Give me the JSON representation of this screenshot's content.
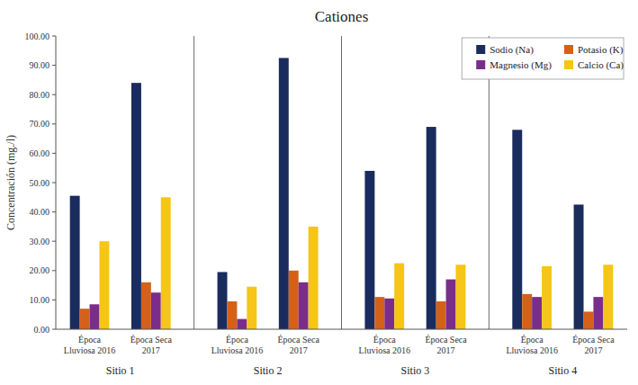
{
  "chart_data": {
    "type": "bar",
    "title": "Cationes",
    "y_label": "Concentración (mg./l)",
    "categories": [
      "Época\nLluviosa 2016",
      "Época Seca\n2017",
      "Época\nLluviosa 2016",
      "Época Seca\n2017",
      "Época\nLluviosa 2016",
      "Época Seca\n2017",
      "Época\nLluviosa 2016",
      "Época Seca\n2017"
    ],
    "groups": [
      "Sitio 1",
      "Sitio 2",
      "Sitio 3",
      "Sitio 4"
    ],
    "series": [
      {
        "name": "Sodio (Na)",
        "color": "#1a2b5e",
        "values": [
          45.5,
          84.0,
          19.5,
          92.5,
          54.0,
          69.0,
          68.0,
          42.5
        ]
      },
      {
        "name": "Potasio (K)",
        "color": "#d4611a",
        "values": [
          7.0,
          16.0,
          9.5,
          20.0,
          11.0,
          9.5,
          12.0,
          6.0
        ]
      },
      {
        "name": "Magnesio (Mg)",
        "color": "#7b2d8b",
        "values": [
          8.5,
          12.5,
          3.5,
          16.0,
          10.5,
          17.0,
          11.0,
          11.0
        ]
      },
      {
        "name": "Calcio (Ca)",
        "color": "#f5c518",
        "values": [
          30.0,
          45.0,
          14.5,
          35.0,
          22.5,
          22.0,
          21.5,
          22.0
        ]
      }
    ],
    "ylim": [
      0,
      100
    ],
    "yticks": [
      {
        "value": 0,
        "label": "0.00"
      },
      {
        "value": 10,
        "label": "10.00"
      },
      {
        "value": 20,
        "label": "20.00"
      },
      {
        "value": 30,
        "label": "30.00"
      },
      {
        "value": 40,
        "label": "40.00"
      },
      {
        "value": 50,
        "label": "50.00"
      },
      {
        "value": 60,
        "label": "60.00"
      },
      {
        "value": 70,
        "label": "70.00"
      },
      {
        "value": 80,
        "label": "80.00"
      },
      {
        "value": 90,
        "label": "90.00"
      },
      {
        "value": 100,
        "label": "100.00"
      }
    ],
    "grid": false,
    "legend": "upper right"
  }
}
